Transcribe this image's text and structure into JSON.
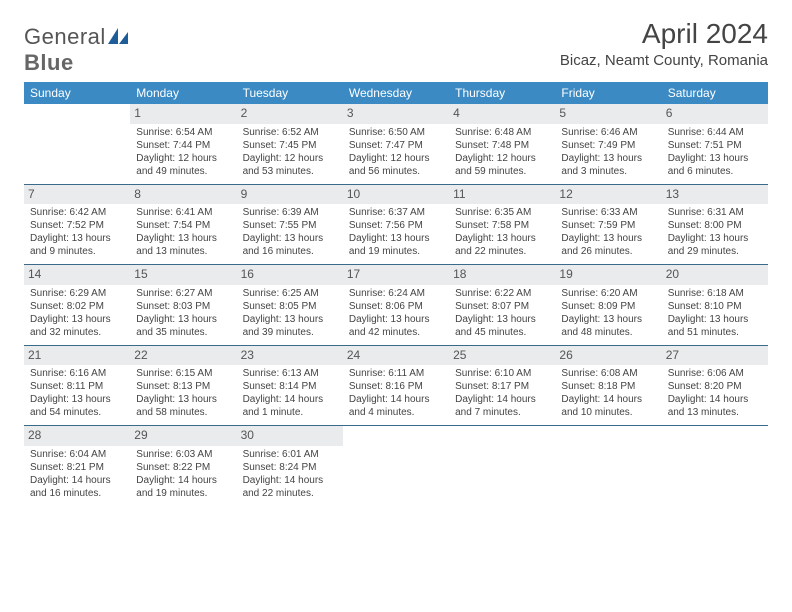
{
  "logo": {
    "text1": "General",
    "text2": "Blue"
  },
  "title": "April 2024",
  "subtitle": "Bicaz, Neamt County, Romania",
  "colors": {
    "header_bg": "#3b8ac4",
    "header_text": "#ffffff",
    "daynum_bg": "#e9ebec",
    "row_divider": "#3b6a8a",
    "text": "#444444",
    "logo_accent": "#1d5e9a"
  },
  "dayNames": [
    "Sunday",
    "Monday",
    "Tuesday",
    "Wednesday",
    "Thursday",
    "Friday",
    "Saturday"
  ],
  "weeks": [
    [
      {
        "n": "",
        "sr": "",
        "ss": "",
        "dl1": "",
        "dl2": "",
        "empty": true
      },
      {
        "n": "1",
        "sr": "Sunrise: 6:54 AM",
        "ss": "Sunset: 7:44 PM",
        "dl1": "Daylight: 12 hours",
        "dl2": "and 49 minutes."
      },
      {
        "n": "2",
        "sr": "Sunrise: 6:52 AM",
        "ss": "Sunset: 7:45 PM",
        "dl1": "Daylight: 12 hours",
        "dl2": "and 53 minutes."
      },
      {
        "n": "3",
        "sr": "Sunrise: 6:50 AM",
        "ss": "Sunset: 7:47 PM",
        "dl1": "Daylight: 12 hours",
        "dl2": "and 56 minutes."
      },
      {
        "n": "4",
        "sr": "Sunrise: 6:48 AM",
        "ss": "Sunset: 7:48 PM",
        "dl1": "Daylight: 12 hours",
        "dl2": "and 59 minutes."
      },
      {
        "n": "5",
        "sr": "Sunrise: 6:46 AM",
        "ss": "Sunset: 7:49 PM",
        "dl1": "Daylight: 13 hours",
        "dl2": "and 3 minutes."
      },
      {
        "n": "6",
        "sr": "Sunrise: 6:44 AM",
        "ss": "Sunset: 7:51 PM",
        "dl1": "Daylight: 13 hours",
        "dl2": "and 6 minutes."
      }
    ],
    [
      {
        "n": "7",
        "sr": "Sunrise: 6:42 AM",
        "ss": "Sunset: 7:52 PM",
        "dl1": "Daylight: 13 hours",
        "dl2": "and 9 minutes."
      },
      {
        "n": "8",
        "sr": "Sunrise: 6:41 AM",
        "ss": "Sunset: 7:54 PM",
        "dl1": "Daylight: 13 hours",
        "dl2": "and 13 minutes."
      },
      {
        "n": "9",
        "sr": "Sunrise: 6:39 AM",
        "ss": "Sunset: 7:55 PM",
        "dl1": "Daylight: 13 hours",
        "dl2": "and 16 minutes."
      },
      {
        "n": "10",
        "sr": "Sunrise: 6:37 AM",
        "ss": "Sunset: 7:56 PM",
        "dl1": "Daylight: 13 hours",
        "dl2": "and 19 minutes."
      },
      {
        "n": "11",
        "sr": "Sunrise: 6:35 AM",
        "ss": "Sunset: 7:58 PM",
        "dl1": "Daylight: 13 hours",
        "dl2": "and 22 minutes."
      },
      {
        "n": "12",
        "sr": "Sunrise: 6:33 AM",
        "ss": "Sunset: 7:59 PM",
        "dl1": "Daylight: 13 hours",
        "dl2": "and 26 minutes."
      },
      {
        "n": "13",
        "sr": "Sunrise: 6:31 AM",
        "ss": "Sunset: 8:00 PM",
        "dl1": "Daylight: 13 hours",
        "dl2": "and 29 minutes."
      }
    ],
    [
      {
        "n": "14",
        "sr": "Sunrise: 6:29 AM",
        "ss": "Sunset: 8:02 PM",
        "dl1": "Daylight: 13 hours",
        "dl2": "and 32 minutes."
      },
      {
        "n": "15",
        "sr": "Sunrise: 6:27 AM",
        "ss": "Sunset: 8:03 PM",
        "dl1": "Daylight: 13 hours",
        "dl2": "and 35 minutes."
      },
      {
        "n": "16",
        "sr": "Sunrise: 6:25 AM",
        "ss": "Sunset: 8:05 PM",
        "dl1": "Daylight: 13 hours",
        "dl2": "and 39 minutes."
      },
      {
        "n": "17",
        "sr": "Sunrise: 6:24 AM",
        "ss": "Sunset: 8:06 PM",
        "dl1": "Daylight: 13 hours",
        "dl2": "and 42 minutes."
      },
      {
        "n": "18",
        "sr": "Sunrise: 6:22 AM",
        "ss": "Sunset: 8:07 PM",
        "dl1": "Daylight: 13 hours",
        "dl2": "and 45 minutes."
      },
      {
        "n": "19",
        "sr": "Sunrise: 6:20 AM",
        "ss": "Sunset: 8:09 PM",
        "dl1": "Daylight: 13 hours",
        "dl2": "and 48 minutes."
      },
      {
        "n": "20",
        "sr": "Sunrise: 6:18 AM",
        "ss": "Sunset: 8:10 PM",
        "dl1": "Daylight: 13 hours",
        "dl2": "and 51 minutes."
      }
    ],
    [
      {
        "n": "21",
        "sr": "Sunrise: 6:16 AM",
        "ss": "Sunset: 8:11 PM",
        "dl1": "Daylight: 13 hours",
        "dl2": "and 54 minutes."
      },
      {
        "n": "22",
        "sr": "Sunrise: 6:15 AM",
        "ss": "Sunset: 8:13 PM",
        "dl1": "Daylight: 13 hours",
        "dl2": "and 58 minutes."
      },
      {
        "n": "23",
        "sr": "Sunrise: 6:13 AM",
        "ss": "Sunset: 8:14 PM",
        "dl1": "Daylight: 14 hours",
        "dl2": "and 1 minute."
      },
      {
        "n": "24",
        "sr": "Sunrise: 6:11 AM",
        "ss": "Sunset: 8:16 PM",
        "dl1": "Daylight: 14 hours",
        "dl2": "and 4 minutes."
      },
      {
        "n": "25",
        "sr": "Sunrise: 6:10 AM",
        "ss": "Sunset: 8:17 PM",
        "dl1": "Daylight: 14 hours",
        "dl2": "and 7 minutes."
      },
      {
        "n": "26",
        "sr": "Sunrise: 6:08 AM",
        "ss": "Sunset: 8:18 PM",
        "dl1": "Daylight: 14 hours",
        "dl2": "and 10 minutes."
      },
      {
        "n": "27",
        "sr": "Sunrise: 6:06 AM",
        "ss": "Sunset: 8:20 PM",
        "dl1": "Daylight: 14 hours",
        "dl2": "and 13 minutes."
      }
    ],
    [
      {
        "n": "28",
        "sr": "Sunrise: 6:04 AM",
        "ss": "Sunset: 8:21 PM",
        "dl1": "Daylight: 14 hours",
        "dl2": "and 16 minutes."
      },
      {
        "n": "29",
        "sr": "Sunrise: 6:03 AM",
        "ss": "Sunset: 8:22 PM",
        "dl1": "Daylight: 14 hours",
        "dl2": "and 19 minutes."
      },
      {
        "n": "30",
        "sr": "Sunrise: 6:01 AM",
        "ss": "Sunset: 8:24 PM",
        "dl1": "Daylight: 14 hours",
        "dl2": "and 22 minutes."
      },
      {
        "n": "",
        "sr": "",
        "ss": "",
        "dl1": "",
        "dl2": "",
        "empty": true
      },
      {
        "n": "",
        "sr": "",
        "ss": "",
        "dl1": "",
        "dl2": "",
        "empty": true
      },
      {
        "n": "",
        "sr": "",
        "ss": "",
        "dl1": "",
        "dl2": "",
        "empty": true
      },
      {
        "n": "",
        "sr": "",
        "ss": "",
        "dl1": "",
        "dl2": "",
        "empty": true
      }
    ]
  ]
}
